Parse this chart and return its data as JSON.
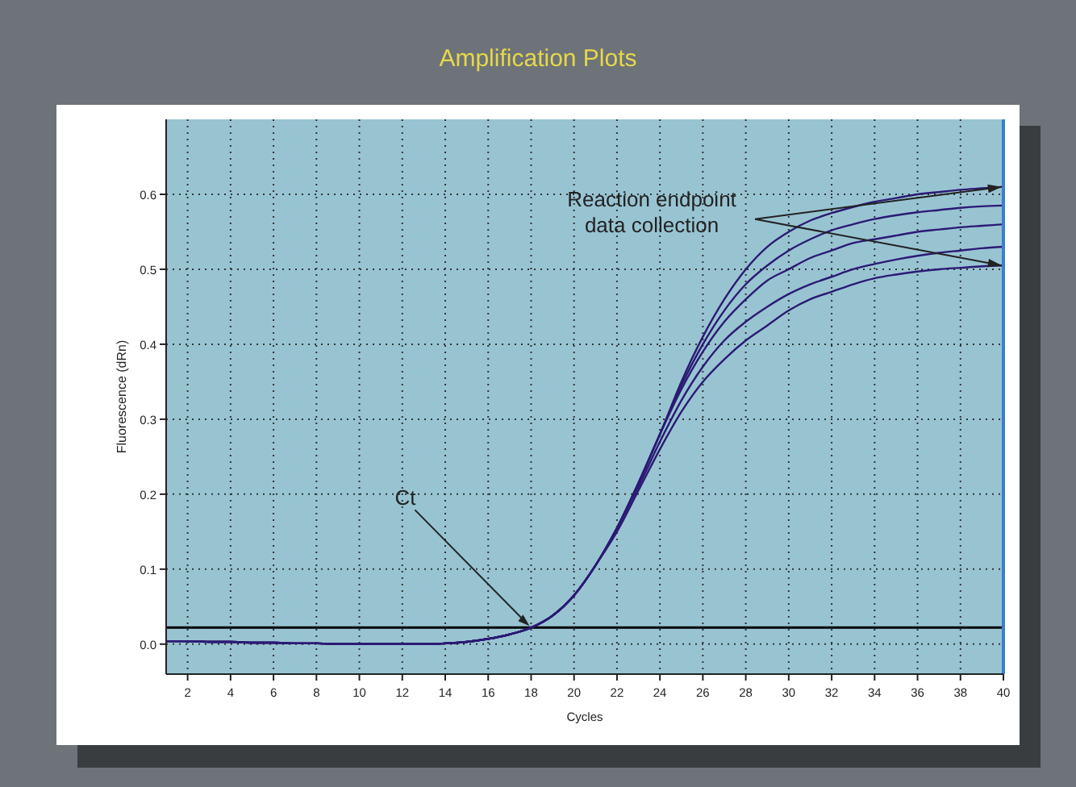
{
  "chart_data": {
    "type": "line",
    "title": "Amplification Plots",
    "xlabel": "Cycles",
    "ylabel": "Fluorescence (dRn)",
    "xlim": [
      1,
      40
    ],
    "xticks": [
      2,
      4,
      6,
      8,
      10,
      12,
      14,
      16,
      18,
      20,
      22,
      24,
      26,
      28,
      30,
      32,
      34,
      36,
      38,
      40
    ],
    "ylim": [
      -0.04,
      0.7
    ],
    "yticks": [
      {
        "value": 0,
        "label": "0.0"
      },
      0.1,
      0.2,
      0.3,
      0.4,
      0.5,
      0.6
    ],
    "grid": true,
    "marker": "none",
    "line_style": "solid",
    "x": [
      1,
      2,
      3,
      4,
      5,
      6,
      7,
      8,
      9,
      10,
      11,
      12,
      13,
      14,
      15,
      16,
      17,
      18,
      19,
      20,
      21,
      22,
      23,
      24,
      25,
      26,
      27,
      28,
      29,
      30,
      31,
      32,
      33,
      34,
      35,
      36,
      37,
      38,
      39,
      40
    ],
    "series": [
      {
        "color": "#2b1a74",
        "values": [
          0.004,
          0.004,
          0.003,
          0.003,
          0.002,
          0.002,
          0.001,
          0.001,
          0,
          0,
          0,
          0,
          0,
          0.001,
          0.003,
          0.007,
          0.013,
          0.022,
          0.038,
          0.065,
          0.105,
          0.155,
          0.215,
          0.28,
          0.35,
          0.41,
          0.46,
          0.5,
          0.53,
          0.55,
          0.565,
          0.575,
          0.583,
          0.59,
          0.595,
          0.6,
          0.603,
          0.606,
          0.608,
          0.61
        ]
      },
      {
        "color": "#2b1a74",
        "values": [
          0.004,
          0.004,
          0.003,
          0.003,
          0.002,
          0.002,
          0.001,
          0.001,
          0,
          0,
          0,
          0,
          0,
          0.001,
          0.003,
          0.007,
          0.013,
          0.022,
          0.038,
          0.065,
          0.105,
          0.155,
          0.215,
          0.28,
          0.345,
          0.4,
          0.445,
          0.48,
          0.505,
          0.525,
          0.54,
          0.552,
          0.56,
          0.567,
          0.572,
          0.576,
          0.579,
          0.582,
          0.584,
          0.585
        ]
      },
      {
        "color": "#2b1a74",
        "values": [
          0.004,
          0.004,
          0.003,
          0.003,
          0.002,
          0.002,
          0.001,
          0.001,
          0,
          0,
          0,
          0,
          0,
          0.001,
          0.003,
          0.007,
          0.013,
          0.022,
          0.038,
          0.065,
          0.105,
          0.155,
          0.215,
          0.28,
          0.34,
          0.39,
          0.43,
          0.46,
          0.485,
          0.5,
          0.515,
          0.525,
          0.535,
          0.54,
          0.545,
          0.55,
          0.553,
          0.556,
          0.558,
          0.56
        ]
      },
      {
        "color": "#2b1a74",
        "values": [
          0.004,
          0.004,
          0.003,
          0.003,
          0.002,
          0.002,
          0.001,
          0.001,
          0,
          0,
          0,
          0,
          0,
          0.001,
          0.003,
          0.007,
          0.013,
          0.022,
          0.038,
          0.065,
          0.105,
          0.155,
          0.21,
          0.27,
          0.325,
          0.37,
          0.405,
          0.43,
          0.45,
          0.467,
          0.48,
          0.49,
          0.5,
          0.507,
          0.513,
          0.518,
          0.522,
          0.525,
          0.528,
          0.53
        ]
      },
      {
        "color": "#2b1a74",
        "values": [
          0.004,
          0.004,
          0.003,
          0.003,
          0.002,
          0.002,
          0.001,
          0.001,
          0,
          0,
          0,
          0,
          0,
          0.001,
          0.003,
          0.007,
          0.013,
          0.022,
          0.038,
          0.065,
          0.105,
          0.15,
          0.205,
          0.26,
          0.31,
          0.35,
          0.38,
          0.405,
          0.425,
          0.445,
          0.46,
          0.47,
          0.48,
          0.488,
          0.493,
          0.497,
          0.5,
          0.502,
          0.504,
          0.505
        ]
      }
    ],
    "ref_lines": [
      {
        "axis": "y",
        "value": 0.022,
        "color": "#000000",
        "line_style": "solid"
      }
    ],
    "annotations": [
      {
        "text": "Ct",
        "x": 18,
        "y": 0.022
      },
      {
        "text": "Reaction endpoint\ndata collection",
        "x": 40,
        "y": 0.61
      }
    ]
  }
}
